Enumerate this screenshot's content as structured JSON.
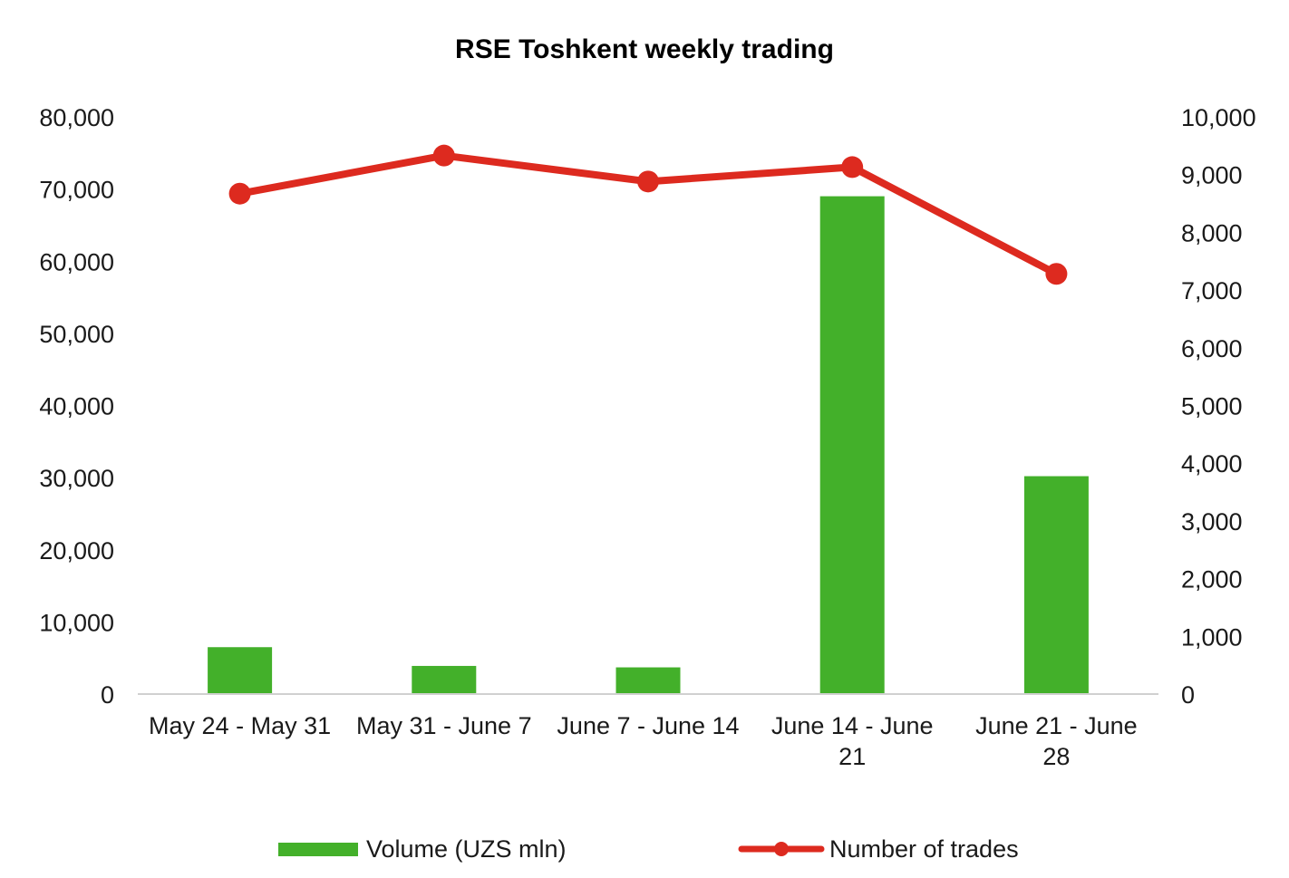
{
  "colors": {
    "bar": "#43b02a",
    "line": "#dd2a1f",
    "axis": "#d0d0d0",
    "text": "#1a1a1a"
  },
  "chart_data": {
    "type": "bar",
    "title": "RSE Toshkent weekly trading",
    "categories": [
      [
        "May 24 - May 31"
      ],
      [
        "May 31 - June 7"
      ],
      [
        "June 7 - June 14"
      ],
      [
        "June 14 - June",
        "21"
      ],
      [
        "June 21 - June",
        "28"
      ]
    ],
    "series": [
      {
        "name": "Volume (UZS mln)",
        "type": "bar",
        "axis": "left",
        "values": [
          6500,
          3900,
          3700,
          69000,
          30200
        ]
      },
      {
        "name": "Number of trades",
        "type": "line",
        "axis": "right",
        "values": [
          8670,
          9330,
          8880,
          9130,
          7280
        ]
      }
    ],
    "y_left": {
      "range": [
        0,
        80000
      ],
      "ticks": [
        "80,000",
        "70,000",
        "60,000",
        "50,000",
        "40,000",
        "30,000",
        "20,000",
        "10,000",
        "0"
      ]
    },
    "y_right": {
      "range": [
        0,
        10000
      ],
      "ticks": [
        "10,000",
        "9,000",
        "8,000",
        "7,000",
        "6,000",
        "5,000",
        "4,000",
        "3,000",
        "2,000",
        "1,000",
        "0"
      ]
    },
    "grid": false,
    "legend": "bottom"
  }
}
